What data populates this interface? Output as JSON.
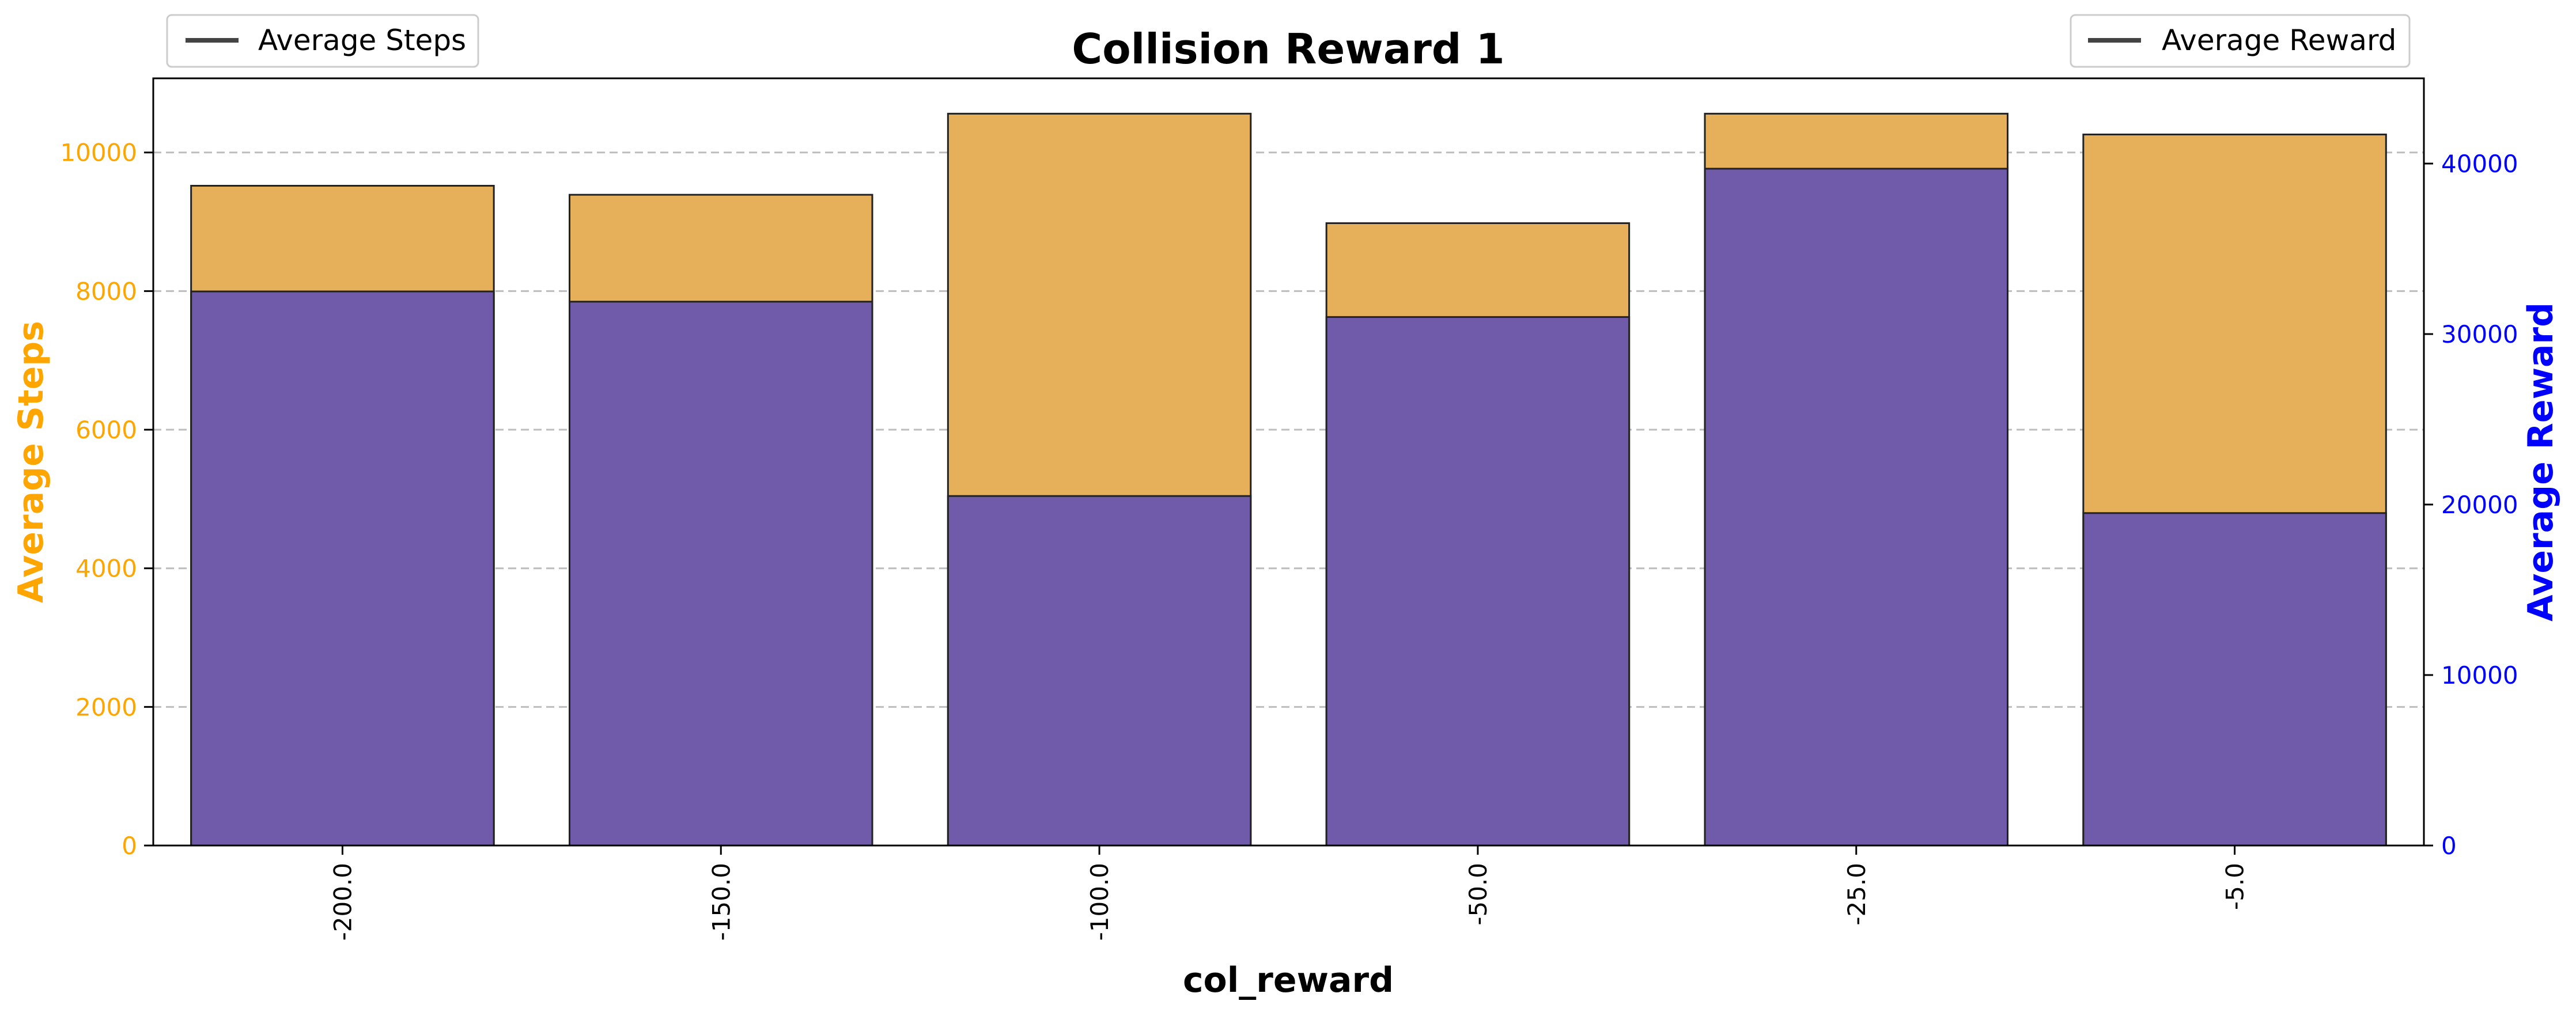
{
  "chart_data": {
    "type": "bar",
    "title": "Collision Reward 1",
    "xlabel": "col_reward",
    "categories": [
      "-200.0",
      "-150.0",
      "-100.0",
      "-50.0",
      "-25.0",
      "-5.0"
    ],
    "series": [
      {
        "name": "Average Steps",
        "axis": "left",
        "values": [
          9520,
          9390,
          10560,
          8980,
          10560,
          10260
        ]
      },
      {
        "name": "Average Reward",
        "axis": "right",
        "values": [
          32500,
          31900,
          20500,
          31000,
          39700,
          19500
        ]
      }
    ],
    "y_left": {
      "label": "Average Steps",
      "range": [
        0,
        11070
      ],
      "ticks": [
        "0",
        "2000",
        "4000",
        "6000",
        "8000",
        "10000"
      ],
      "color": "#FFA500"
    },
    "y_right": {
      "label": "Average Reward",
      "range": [
        0,
        45000
      ],
      "ticks": [
        "0",
        "10000",
        "20000",
        "30000",
        "40000"
      ],
      "color": "#0000FF"
    },
    "bar_colors": {
      "steps": "#E6B05A",
      "reward": "#6F5BAA",
      "reward_exposed": "#7878F0",
      "edge": "#222222"
    },
    "grid": "y-dashed",
    "legends": [
      {
        "label": "Average Steps",
        "placement": "top-left"
      },
      {
        "label": "Average Reward",
        "placement": "top-right"
      }
    ]
  }
}
